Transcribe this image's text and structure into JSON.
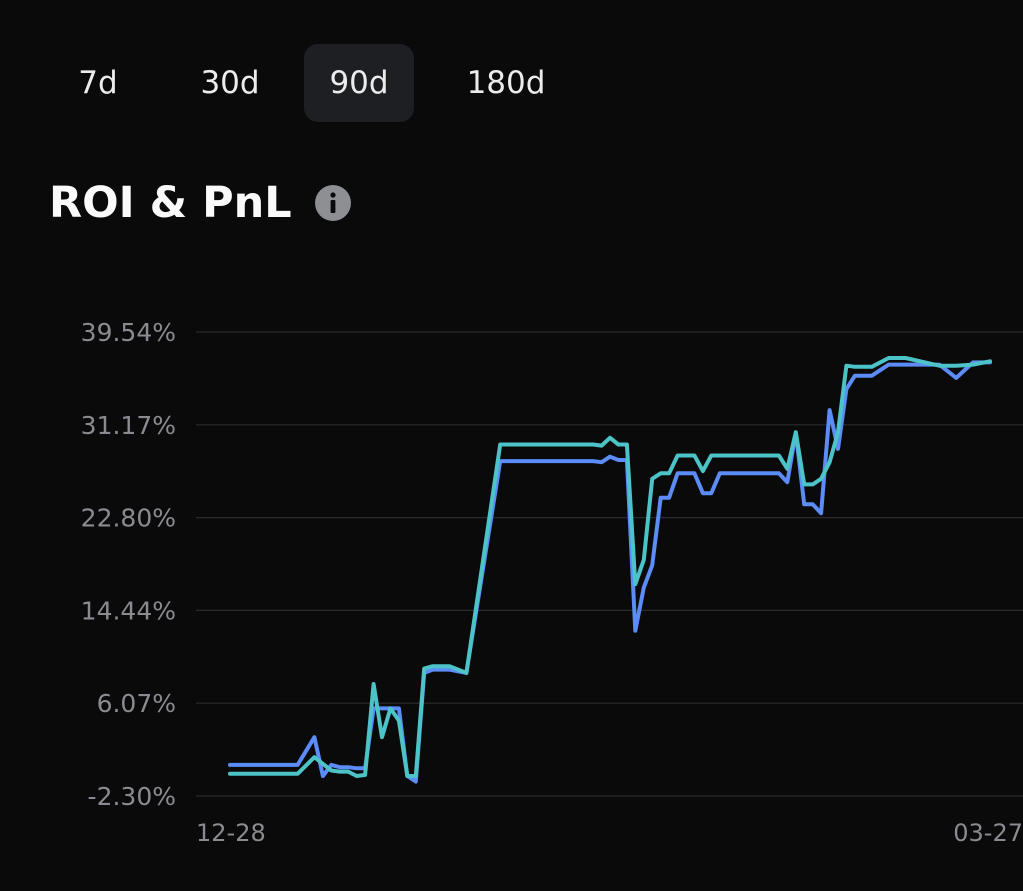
{
  "tabs": [
    {
      "label": "7d",
      "active": false
    },
    {
      "label": "30d",
      "active": false
    },
    {
      "label": "90d",
      "active": true
    },
    {
      "label": "180d",
      "active": false
    }
  ],
  "header": {
    "title": "ROI & PnL",
    "info_icon": "info-icon"
  },
  "colors": {
    "background": "#0a0a0b",
    "roi_line": "#5b8cf7",
    "pnl_line": "#4cc3c6",
    "grid": "#2a2b2e",
    "axis_text": "#8a8b90",
    "active_tab_bg": "#1e1f22"
  },
  "chart_data": {
    "type": "line",
    "y_ticks": [
      "39.54%",
      "31.17%",
      "22.80%",
      "14.44%",
      "6.07%",
      "-2.30%"
    ],
    "y_tick_values": [
      39.54,
      31.17,
      22.8,
      14.44,
      6.07,
      -2.3
    ],
    "ylim": [
      -2.3,
      39.54
    ],
    "x_ticks": [
      "12-28",
      "03-27"
    ],
    "grid": true,
    "series": [
      {
        "color": "#5b8cf7",
        "x": [
          0,
          8,
          10,
          11,
          12,
          13,
          14,
          15,
          16,
          17,
          18,
          19,
          20,
          21,
          22,
          23,
          24,
          26,
          28,
          32,
          36,
          37,
          38,
          39,
          40,
          41,
          42,
          43,
          44,
          45,
          46,
          47,
          48,
          49,
          50,
          51,
          52,
          53,
          54,
          55,
          56,
          57,
          58,
          59,
          60,
          61,
          62,
          63,
          64,
          65,
          66,
          67,
          68,
          69,
          70,
          71,
          72,
          73,
          74,
          75,
          76,
          78,
          80,
          84,
          86,
          88,
          90
        ],
        "y": [
          0.5,
          0.5,
          3.0,
          -0.5,
          0.5,
          0.3,
          0.3,
          0.2,
          0.2,
          5.6,
          5.6,
          5.6,
          5.6,
          -0.5,
          -1.0,
          8.8,
          9.1,
          9.1,
          8.8,
          27.9,
          27.9,
          27.9,
          27.9,
          27.9,
          27.9,
          27.9,
          27.9,
          27.9,
          27.8,
          28.3,
          28.0,
          28.0,
          12.6,
          16.5,
          18.5,
          24.6,
          24.6,
          26.8,
          26.8,
          26.8,
          25.0,
          25.0,
          26.8,
          26.8,
          26.8,
          26.8,
          26.8,
          26.8,
          26.8,
          26.8,
          26.0,
          30.5,
          24.0,
          24.0,
          23.2,
          32.5,
          29.0,
          34.4,
          35.6,
          35.6,
          35.6,
          36.6,
          36.6,
          36.6,
          35.4,
          36.8,
          36.8
        ]
      },
      {
        "color": "#4cc3c6",
        "x": [
          0,
          8,
          10,
          11,
          12,
          13,
          14,
          15,
          16,
          17,
          18,
          19,
          20,
          21,
          22,
          23,
          24,
          26,
          28,
          32,
          36,
          37,
          38,
          39,
          40,
          41,
          42,
          43,
          44,
          45,
          46,
          47,
          48,
          49,
          50,
          51,
          52,
          53,
          54,
          55,
          56,
          57,
          58,
          59,
          60,
          61,
          62,
          63,
          64,
          65,
          66,
          67,
          68,
          69,
          70,
          71,
          72,
          73,
          74,
          75,
          76,
          78,
          80,
          84,
          86,
          88,
          90
        ],
        "y": [
          -0.3,
          -0.3,
          1.2,
          0.6,
          0.0,
          -0.1,
          -0.1,
          -0.5,
          -0.4,
          7.8,
          3.0,
          5.6,
          4.5,
          -0.5,
          -0.5,
          9.2,
          9.4,
          9.4,
          8.8,
          29.4,
          29.4,
          29.4,
          29.4,
          29.4,
          29.4,
          29.4,
          29.4,
          29.4,
          29.3,
          30.0,
          29.4,
          29.4,
          16.8,
          19.0,
          26.3,
          26.8,
          26.8,
          28.4,
          28.4,
          28.4,
          27.0,
          28.4,
          28.4,
          28.4,
          28.4,
          28.4,
          28.4,
          28.4,
          28.4,
          28.4,
          27.2,
          30.5,
          25.8,
          25.8,
          26.3,
          27.8,
          30.5,
          36.5,
          36.4,
          36.4,
          36.4,
          37.2,
          37.2,
          36.5,
          36.5,
          36.6,
          36.9
        ]
      }
    ]
  }
}
